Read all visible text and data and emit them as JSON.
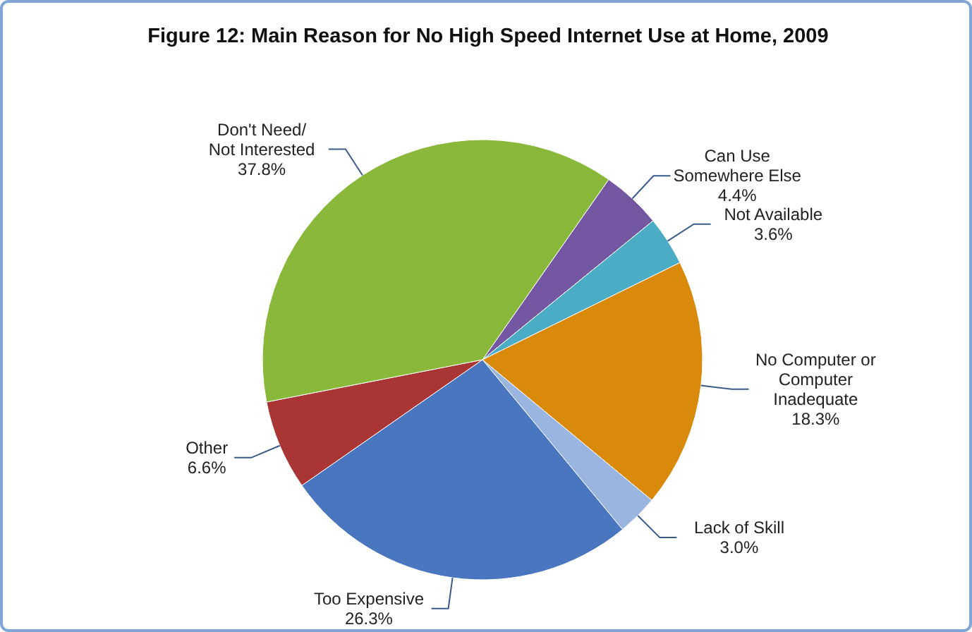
{
  "chart_data": {
    "type": "pie",
    "title": "Figure 12:  Main Reason for No High Speed Internet Use at Home, 2009",
    "categories": [
      "Can Use Somewhere Else",
      "Not Available",
      "No Computer or Computer Inadequate",
      "Lack of Skill",
      "Too Expensive",
      "Other",
      "Don't Need/ Not Interested"
    ],
    "values": [
      4.4,
      3.6,
      18.3,
      3.0,
      26.3,
      6.6,
      37.8
    ],
    "value_labels": [
      "4.4%",
      "3.6%",
      "18.3%",
      "3.0%",
      "26.3%",
      "6.6%",
      "37.8%"
    ],
    "colors": [
      "#7457a3",
      "#4bacc6",
      "#d98a0a",
      "#9ab6e0",
      "#4a76c0",
      "#aa3535",
      "#8ab83a"
    ]
  }
}
